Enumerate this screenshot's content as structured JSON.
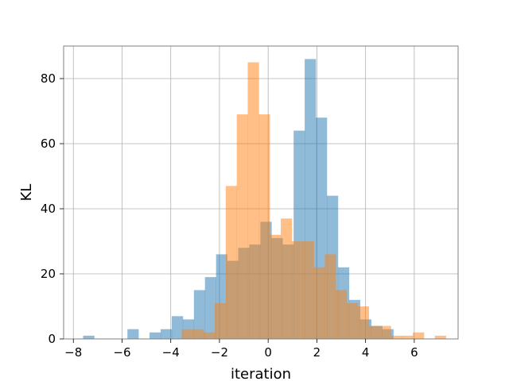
{
  "chart_data": {
    "type": "bar",
    "title": "",
    "xlabel": "iteration",
    "ylabel": "KL",
    "xlim": [
      -8.4,
      7.8
    ],
    "ylim": [
      0,
      90
    ],
    "xticks": [
      -8,
      -6,
      -4,
      -2,
      0,
      2,
      4,
      6
    ],
    "yticks": [
      0,
      20,
      40,
      60,
      80
    ],
    "xtick_labels": [
      "−8",
      "−6",
      "−4",
      "−2",
      "0",
      "2",
      "4",
      "6"
    ],
    "ytick_labels": [
      "0",
      "20",
      "40",
      "60",
      "80"
    ],
    "grid": true,
    "legend": "none",
    "series": [
      {
        "color": "#1f77b4",
        "alpha": 0.5,
        "bin_width": 0.455,
        "bin_start": -7.6,
        "counts": [
          1,
          0,
          0,
          0,
          3,
          0,
          2,
          3,
          7,
          6,
          15,
          19,
          26,
          24,
          28,
          29,
          36,
          31,
          29,
          64,
          86,
          68,
          44,
          22,
          12,
          6,
          4,
          3,
          0,
          0
        ]
      },
      {
        "color": "#ff7f0e",
        "alpha": 0.5,
        "bin_width": 0.452,
        "bin_start": -3.55,
        "counts": [
          3,
          3,
          2,
          11,
          47,
          69,
          85,
          69,
          32,
          37,
          30,
          30,
          22,
          26,
          15,
          11,
          10,
          4,
          4,
          1,
          1,
          2,
          0,
          1
        ]
      }
    ]
  }
}
